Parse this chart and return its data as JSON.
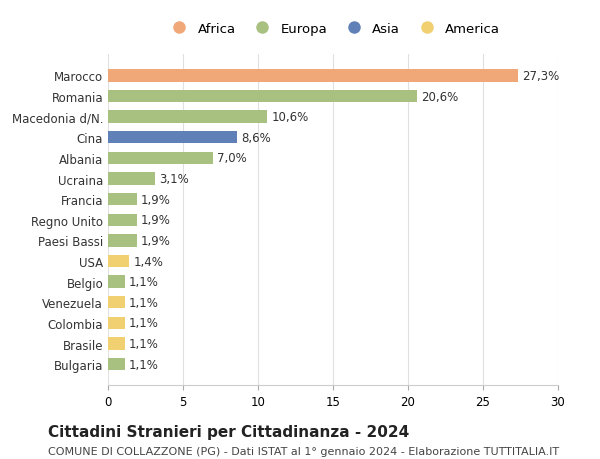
{
  "countries": [
    "Marocco",
    "Romania",
    "Macedonia d/N.",
    "Cina",
    "Albania",
    "Ucraina",
    "Francia",
    "Regno Unito",
    "Paesi Bassi",
    "USA",
    "Belgio",
    "Venezuela",
    "Colombia",
    "Brasile",
    "Bulgaria"
  ],
  "values": [
    27.3,
    20.6,
    10.6,
    8.6,
    7.0,
    3.1,
    1.9,
    1.9,
    1.9,
    1.4,
    1.1,
    1.1,
    1.1,
    1.1,
    1.1
  ],
  "continents": [
    "Africa",
    "Europa",
    "Europa",
    "Asia",
    "Europa",
    "Europa",
    "Europa",
    "Europa",
    "Europa",
    "America",
    "Europa",
    "America",
    "America",
    "America",
    "Europa"
  ],
  "colors": {
    "Africa": "#F0A878",
    "Europa": "#A8C080",
    "Asia": "#6080B8",
    "America": "#F0D070"
  },
  "legend_order": [
    "Africa",
    "Europa",
    "Asia",
    "America"
  ],
  "title": "Cittadini Stranieri per Cittadinanza - 2024",
  "subtitle": "COMUNE DI COLLAZZONE (PG) - Dati ISTAT al 1° gennaio 2024 - Elaborazione TUTTITALIA.IT",
  "xlim": [
    0,
    30
  ],
  "xticks": [
    0,
    5,
    10,
    15,
    20,
    25,
    30
  ],
  "background_color": "#ffffff",
  "grid_color": "#e0e0e0",
  "label_fontsize": 8.5,
  "value_fontsize": 8.5,
  "title_fontsize": 11,
  "subtitle_fontsize": 8
}
